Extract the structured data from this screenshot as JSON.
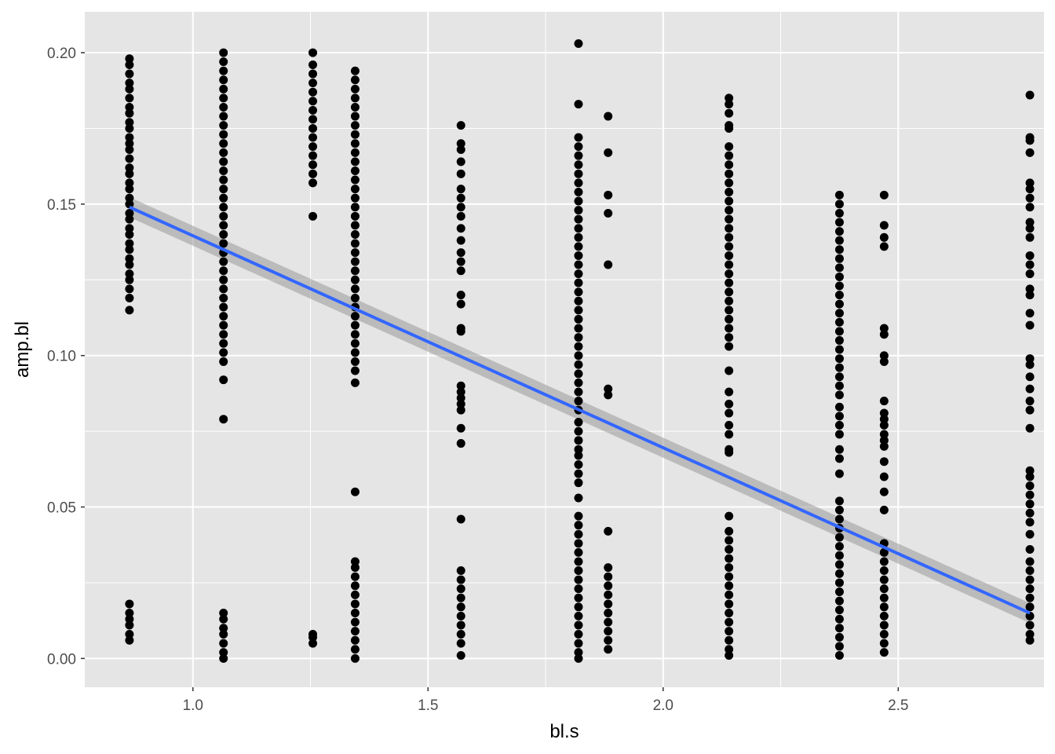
{
  "chart_data": {
    "type": "scatter",
    "title": "",
    "xlabel": "bl.s",
    "ylabel": "amp.bl",
    "xlim": [
      0.77,
      2.81
    ],
    "ylim": [
      -0.0095,
      0.2135
    ],
    "x_ticks": [
      1.0,
      1.5,
      2.0,
      2.5
    ],
    "x_tick_labels": [
      "1.0",
      "1.5",
      "2.0",
      "2.5"
    ],
    "y_ticks": [
      0.0,
      0.05,
      0.1,
      0.15,
      0.2
    ],
    "y_tick_labels": [
      "0.00",
      "0.05",
      "0.10",
      "0.15",
      "0.20"
    ],
    "grid": true,
    "legend": "none",
    "colors": {
      "panel_background": "#e5e5e5",
      "grid": "#ffffff",
      "points": "#000000",
      "smooth_line": "#3366ff",
      "confidence_band": "#999999"
    },
    "series": [
      {
        "x": 0.865,
        "values": [
          0.198,
          0.196,
          0.193,
          0.19,
          0.188,
          0.185,
          0.182,
          0.18,
          0.177,
          0.175,
          0.172,
          0.17,
          0.168,
          0.165,
          0.162,
          0.16,
          0.157,
          0.155,
          0.152,
          0.15,
          0.147,
          0.145,
          0.142,
          0.14,
          0.137,
          0.135,
          0.132,
          0.13,
          0.127,
          0.125,
          0.122,
          0.119,
          0.115,
          0.018,
          0.015,
          0.013,
          0.011,
          0.008,
          0.006
        ]
      },
      {
        "x": 1.065,
        "values": [
          0.2,
          0.197,
          0.194,
          0.191,
          0.188,
          0.185,
          0.182,
          0.179,
          0.176,
          0.173,
          0.17,
          0.167,
          0.164,
          0.161,
          0.158,
          0.155,
          0.152,
          0.149,
          0.146,
          0.143,
          0.14,
          0.137,
          0.134,
          0.131,
          0.128,
          0.125,
          0.122,
          0.119,
          0.116,
          0.113,
          0.11,
          0.107,
          0.104,
          0.101,
          0.098,
          0.092,
          0.079,
          0.015,
          0.013,
          0.01,
          0.008,
          0.005,
          0.002,
          0.0
        ]
      },
      {
        "x": 1.255,
        "values": [
          0.2,
          0.196,
          0.193,
          0.19,
          0.187,
          0.184,
          0.181,
          0.178,
          0.175,
          0.172,
          0.169,
          0.166,
          0.163,
          0.16,
          0.157,
          0.146,
          0.008,
          0.007,
          0.005
        ]
      },
      {
        "x": 1.345,
        "values": [
          0.194,
          0.191,
          0.188,
          0.185,
          0.182,
          0.179,
          0.176,
          0.173,
          0.17,
          0.167,
          0.164,
          0.161,
          0.158,
          0.155,
          0.152,
          0.149,
          0.146,
          0.143,
          0.14,
          0.137,
          0.134,
          0.131,
          0.128,
          0.125,
          0.122,
          0.119,
          0.116,
          0.113,
          0.11,
          0.107,
          0.104,
          0.101,
          0.098,
          0.095,
          0.091,
          0.055,
          0.032,
          0.03,
          0.027,
          0.024,
          0.021,
          0.018,
          0.015,
          0.012,
          0.009,
          0.006,
          0.003,
          0.0
        ]
      },
      {
        "x": 1.57,
        "values": [
          0.176,
          0.17,
          0.168,
          0.164,
          0.16,
          0.155,
          0.152,
          0.149,
          0.146,
          0.142,
          0.138,
          0.134,
          0.131,
          0.128,
          0.12,
          0.117,
          0.109,
          0.108,
          0.09,
          0.088,
          0.086,
          0.084,
          0.082,
          0.076,
          0.071,
          0.046,
          0.029,
          0.026,
          0.023,
          0.02,
          0.017,
          0.014,
          0.011,
          0.008,
          0.005,
          0.001
        ]
      },
      {
        "x": 1.82,
        "values": [
          0.203,
          0.183,
          0.172,
          0.169,
          0.166,
          0.163,
          0.16,
          0.157,
          0.154,
          0.151,
          0.148,
          0.145,
          0.142,
          0.139,
          0.136,
          0.133,
          0.13,
          0.127,
          0.124,
          0.121,
          0.118,
          0.115,
          0.112,
          0.109,
          0.106,
          0.103,
          0.1,
          0.097,
          0.094,
          0.091,
          0.088,
          0.085,
          0.082,
          0.078,
          0.075,
          0.072,
          0.069,
          0.067,
          0.064,
          0.061,
          0.058,
          0.053,
          0.047,
          0.044,
          0.041,
          0.038,
          0.035,
          0.032,
          0.029,
          0.026,
          0.023,
          0.02,
          0.017,
          0.014,
          0.011,
          0.008,
          0.005,
          0.002,
          0.0
        ]
      },
      {
        "x": 1.883,
        "values": [
          0.179,
          0.167,
          0.153,
          0.147,
          0.13,
          0.089,
          0.087,
          0.042,
          0.03,
          0.027,
          0.024,
          0.021,
          0.018,
          0.015,
          0.012,
          0.009,
          0.006,
          0.003
        ]
      },
      {
        "x": 2.14,
        "values": [
          0.185,
          0.183,
          0.18,
          0.176,
          0.175,
          0.169,
          0.166,
          0.163,
          0.16,
          0.157,
          0.154,
          0.151,
          0.148,
          0.145,
          0.142,
          0.139,
          0.136,
          0.133,
          0.13,
          0.127,
          0.124,
          0.121,
          0.118,
          0.115,
          0.112,
          0.109,
          0.106,
          0.103,
          0.095,
          0.088,
          0.084,
          0.081,
          0.077,
          0.074,
          0.069,
          0.068,
          0.047,
          0.042,
          0.039,
          0.036,
          0.033,
          0.03,
          0.027,
          0.024,
          0.021,
          0.018,
          0.015,
          0.012,
          0.009,
          0.006,
          0.003,
          0.001
        ]
      },
      {
        "x": 2.375,
        "values": [
          0.153,
          0.15,
          0.147,
          0.144,
          0.141,
          0.138,
          0.135,
          0.132,
          0.129,
          0.126,
          0.123,
          0.12,
          0.117,
          0.114,
          0.111,
          0.108,
          0.105,
          0.102,
          0.099,
          0.096,
          0.093,
          0.09,
          0.087,
          0.083,
          0.08,
          0.077,
          0.074,
          0.069,
          0.066,
          0.061,
          0.052,
          0.049,
          0.046,
          0.043,
          0.04,
          0.037,
          0.034,
          0.031,
          0.028,
          0.025,
          0.022,
          0.019,
          0.016,
          0.013,
          0.01,
          0.007,
          0.004,
          0.001
        ]
      },
      {
        "x": 2.47,
        "values": [
          0.153,
          0.143,
          0.139,
          0.136,
          0.109,
          0.107,
          0.1,
          0.098,
          0.085,
          0.081,
          0.079,
          0.077,
          0.074,
          0.072,
          0.07,
          0.065,
          0.06,
          0.055,
          0.049,
          0.038,
          0.035,
          0.032,
          0.029,
          0.026,
          0.023,
          0.02,
          0.017,
          0.014,
          0.011,
          0.008,
          0.005,
          0.002
        ]
      },
      {
        "x": 2.78,
        "values": [
          0.186,
          0.172,
          0.171,
          0.167,
          0.157,
          0.155,
          0.152,
          0.149,
          0.144,
          0.142,
          0.139,
          0.133,
          0.13,
          0.127,
          0.122,
          0.12,
          0.114,
          0.11,
          0.099,
          0.097,
          0.093,
          0.089,
          0.085,
          0.082,
          0.076,
          0.062,
          0.06,
          0.057,
          0.054,
          0.051,
          0.048,
          0.045,
          0.041,
          0.036,
          0.032,
          0.029,
          0.026,
          0.023,
          0.02,
          0.017,
          0.014,
          0.011,
          0.008,
          0.006
        ]
      }
    ],
    "trend_line": {
      "type": "linear",
      "x": [
        0.865,
        2.78
      ],
      "y": [
        0.149,
        0.015
      ],
      "ci_halfwidth": 0.0033
    }
  }
}
